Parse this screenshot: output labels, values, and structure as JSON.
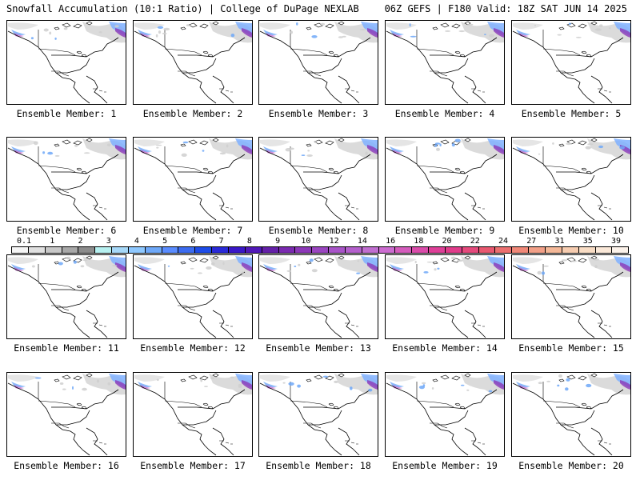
{
  "header": {
    "title_left": "Snowfall Accumulation (10:1 Ratio) | College of DuPage NEXLAB",
    "title_right": "06Z GEFS | F180 Valid: 18Z SAT JUN 14 2025"
  },
  "panels": [
    {
      "label": "Ensemble Member: 1"
    },
    {
      "label": "Ensemble Member: 2"
    },
    {
      "label": "Ensemble Member: 3"
    },
    {
      "label": "Ensemble Member: 4"
    },
    {
      "label": "Ensemble Member: 5"
    },
    {
      "label": "Ensemble Member: 6"
    },
    {
      "label": "Ensemble Member: 7"
    },
    {
      "label": "Ensemble Member: 8"
    },
    {
      "label": "Ensemble Member: 9"
    },
    {
      "label": "Ensemble Member: 10"
    },
    {
      "label": "Ensemble Member: 11"
    },
    {
      "label": "Ensemble Member: 12"
    },
    {
      "label": "Ensemble Member: 13"
    },
    {
      "label": "Ensemble Member: 14"
    },
    {
      "label": "Ensemble Member: 15"
    },
    {
      "label": "Ensemble Member: 16"
    },
    {
      "label": "Ensemble Member: 17"
    },
    {
      "label": "Ensemble Member: 18"
    },
    {
      "label": "Ensemble Member: 19"
    },
    {
      "label": "Ensemble Member: 20"
    }
  ],
  "colorbar": {
    "ticks": [
      "0.1",
      "1",
      "2",
      "3",
      "4",
      "5",
      "6",
      "7",
      "8",
      "9",
      "10",
      "12",
      "14",
      "16",
      "18",
      "20",
      "22",
      "24",
      "27",
      "31",
      "35",
      "39"
    ],
    "colors": [
      "#f5f5f5",
      "#e0e0e0",
      "#c8c8c8",
      "#a8a8a8",
      "#8c8c8c",
      "#b6f0f0",
      "#a6d8f8",
      "#8ec8ff",
      "#6ea8f8",
      "#5a8cff",
      "#3c6cf0",
      "#1e4ce8",
      "#2a2ad8",
      "#3a18c8",
      "#5018b8",
      "#6420a8",
      "#7a2ab0",
      "#8c38b8",
      "#9a46c0",
      "#a854c8",
      "#b460cc",
      "#c06ed0",
      "#cc6cd0",
      "#d45cbc",
      "#da4caa",
      "#de4098",
      "#e03c8a",
      "#e44a7c",
      "#e85870",
      "#ec7070",
      "#f08878",
      "#f2a088",
      "#f4b898",
      "#f6ccb0",
      "#f8dcc4",
      "#fae8d8",
      "#fcf2ea"
    ]
  }
}
